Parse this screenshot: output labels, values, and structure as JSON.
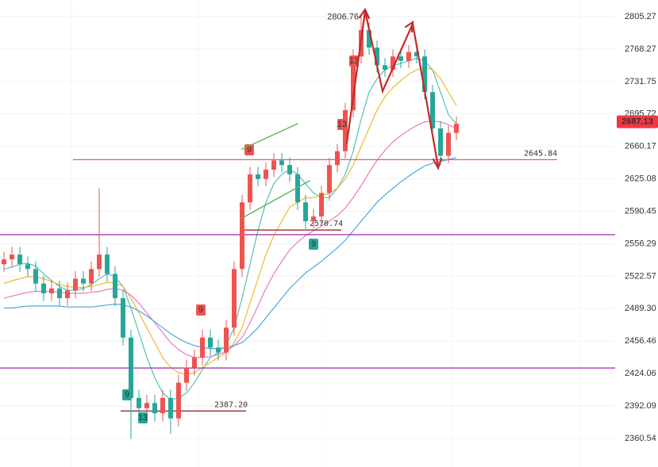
{
  "chart_data": {
    "type": "candlestick",
    "log": true,
    "grid": true,
    "up_color": "#ef5350",
    "down_color": "#26a69a",
    "ylim": [
      2333.1,
      2824.5
    ],
    "yticks": [
      2805.27,
      2768.27,
      2731.75,
      2695.72,
      2660.17,
      2625.08,
      2590.45,
      2556.29,
      2522.57,
      {
        "value": 2489.3,
        "label": "2489.30"
      },
      2456.46,
      2424.06,
      2392.09,
      2360.54
    ],
    "open": [
      2535,
      2540,
      2545,
      2535,
      2530,
      2515,
      2505,
      2510,
      2500,
      2508,
      2520,
      2515,
      2530,
      2545,
      2525,
      2500,
      2460,
      2400,
      2390,
      2395,
      2385,
      2400,
      2380,
      2415,
      2430,
      2440,
      2460,
      2450,
      2445,
      2470,
      2530,
      2600,
      2630,
      2625,
      2635,
      2645,
      2640,
      2630,
      2600,
      2580,
      2585,
      2610,
      2640,
      2655,
      2700,
      2760,
      2790,
      2770,
      2750,
      2745,
      2760,
      2755,
      2765,
      2760,
      2720,
      2680,
      2650,
      2675
    ],
    "high": [
      2548,
      2553,
      2553,
      2543,
      2538,
      2523,
      2518,
      2518,
      2516,
      2528,
      2528,
      2538,
      2615,
      2553,
      2533,
      2508,
      2468,
      2408,
      2403,
      2403,
      2408,
      2408,
      2423,
      2438,
      2448,
      2468,
      2468,
      2458,
      2478,
      2538,
      2608,
      2638,
      2638,
      2643,
      2653,
      2653,
      2648,
      2638,
      2608,
      2593,
      2618,
      2648,
      2663,
      2708,
      2768,
      2806.76,
      2798,
      2778,
      2758,
      2768,
      2768,
      2773,
      2773,
      2768,
      2728,
      2688,
      2683,
      2693
    ],
    "low": [
      2527,
      2532,
      2527,
      2522,
      2507,
      2497,
      2497,
      2492,
      2492,
      2500,
      2507,
      2507,
      2522,
      2517,
      2492,
      2452,
      2360,
      2382,
      2382,
      2377,
      2377,
      2365,
      2372,
      2407,
      2422,
      2432,
      2442,
      2437,
      2437,
      2462,
      2522,
      2592,
      2617,
      2617,
      2627,
      2632,
      2622,
      2592,
      2572,
      2572,
      2577,
      2602,
      2632,
      2647,
      2692,
      2752,
      2762,
      2742,
      2737,
      2737,
      2747,
      2747,
      2752,
      2712,
      2672,
      2640,
      2642,
      2667
    ],
    "close": [
      2540,
      2545,
      2535,
      2530,
      2515,
      2505,
      2510,
      2500,
      2508,
      2520,
      2515,
      2530,
      2545,
      2525,
      2500,
      2460,
      2400,
      2390,
      2395,
      2385,
      2400,
      2380,
      2415,
      2430,
      2440,
      2460,
      2450,
      2445,
      2470,
      2530,
      2600,
      2630,
      2625,
      2635,
      2645,
      2640,
      2630,
      2600,
      2580,
      2585,
      2610,
      2640,
      2655,
      2700,
      2760,
      2790,
      2770,
      2750,
      2745,
      2760,
      2755,
      2765,
      2760,
      2720,
      2680,
      2650,
      2675,
      2685
    ],
    "ma_lines": [
      {
        "color": "#4fc3b8",
        "values": [
          2530,
          2532,
          2535,
          2536,
          2533,
          2525,
          2518,
          2512,
          2508,
          2508,
          2510,
          2514,
          2520,
          2525,
          2522,
          2512,
          2490,
          2465,
          2440,
          2420,
          2405,
          2398,
          2400,
          2405,
          2415,
          2428,
          2440,
          2445,
          2452,
          2470,
          2500,
          2535,
          2570,
          2600,
          2620,
          2630,
          2635,
          2630,
          2620,
          2610,
          2605,
          2605,
          2615,
          2630,
          2655,
          2690,
          2720,
          2735,
          2745,
          2750,
          2752,
          2755,
          2758,
          2755,
          2745,
          2720,
          2695,
          2685
        ]
      },
      {
        "color": "#f5b731",
        "values": [
          2515,
          2518,
          2520,
          2522,
          2522,
          2520,
          2517,
          2514,
          2512,
          2511,
          2511,
          2512,
          2514,
          2516,
          2516,
          2512,
          2500,
          2485,
          2470,
          2455,
          2440,
          2430,
          2425,
          2423,
          2425,
          2430,
          2435,
          2440,
          2445,
          2455,
          2470,
          2495,
          2520,
          2545,
          2565,
          2580,
          2595,
          2600,
          2605,
          2605,
          2607,
          2610,
          2615,
          2625,
          2640,
          2660,
          2680,
          2700,
          2715,
          2725,
          2733,
          2740,
          2745,
          2748,
          2745,
          2735,
          2720,
          2705
        ]
      },
      {
        "color": "#e879c4",
        "values": [
          2500,
          2502,
          2504,
          2506,
          2507,
          2507,
          2507,
          2506,
          2505,
          2505,
          2505,
          2506,
          2507,
          2509,
          2510,
          2508,
          2503,
          2495,
          2485,
          2475,
          2465,
          2455,
          2448,
          2443,
          2440,
          2440,
          2441,
          2443,
          2446,
          2452,
          2460,
          2475,
          2492,
          2510,
          2525,
          2538,
          2550,
          2558,
          2565,
          2570,
          2575,
          2580,
          2586,
          2594,
          2605,
          2618,
          2632,
          2645,
          2656,
          2665,
          2672,
          2678,
          2683,
          2687,
          2688,
          2687,
          2684,
          2680
        ]
      },
      {
        "color": "#4aa8e0",
        "values": [
          2490,
          2490,
          2491,
          2492,
          2492,
          2492,
          2492,
          2492,
          2491,
          2491,
          2491,
          2491,
          2492,
          2493,
          2494,
          2493,
          2491,
          2487,
          2482,
          2476,
          2470,
          2464,
          2459,
          2455,
          2452,
          2450,
          2449,
          2449,
          2450,
          2452,
          2455,
          2462,
          2470,
          2480,
          2490,
          2500,
          2510,
          2518,
          2526,
          2532,
          2538,
          2545,
          2552,
          2560,
          2570,
          2580,
          2590,
          2600,
          2608,
          2615,
          2622,
          2628,
          2634,
          2639,
          2642,
          2644,
          2646,
          2648
        ]
      }
    ],
    "levels": [
      {
        "value": 2645.84,
        "color": "#e05d6f"
      },
      {
        "value": 2570.74,
        "color": "#8b1a1a"
      },
      {
        "value": {
          "value": 2387.2,
          "label": "2387.20"
        },
        "color": "#8b1a1a"
      },
      {
        "value": 2565.8,
        "color": "#9c27b0"
      },
      {
        "value": 2429.6,
        "color": "#9c27b0"
      }
    ],
    "last_price": 2687.13,
    "peak_label": 2806.76,
    "markers": [
      "9",
      "13",
      "9",
      "13",
      "9",
      "9",
      "13"
    ]
  }
}
